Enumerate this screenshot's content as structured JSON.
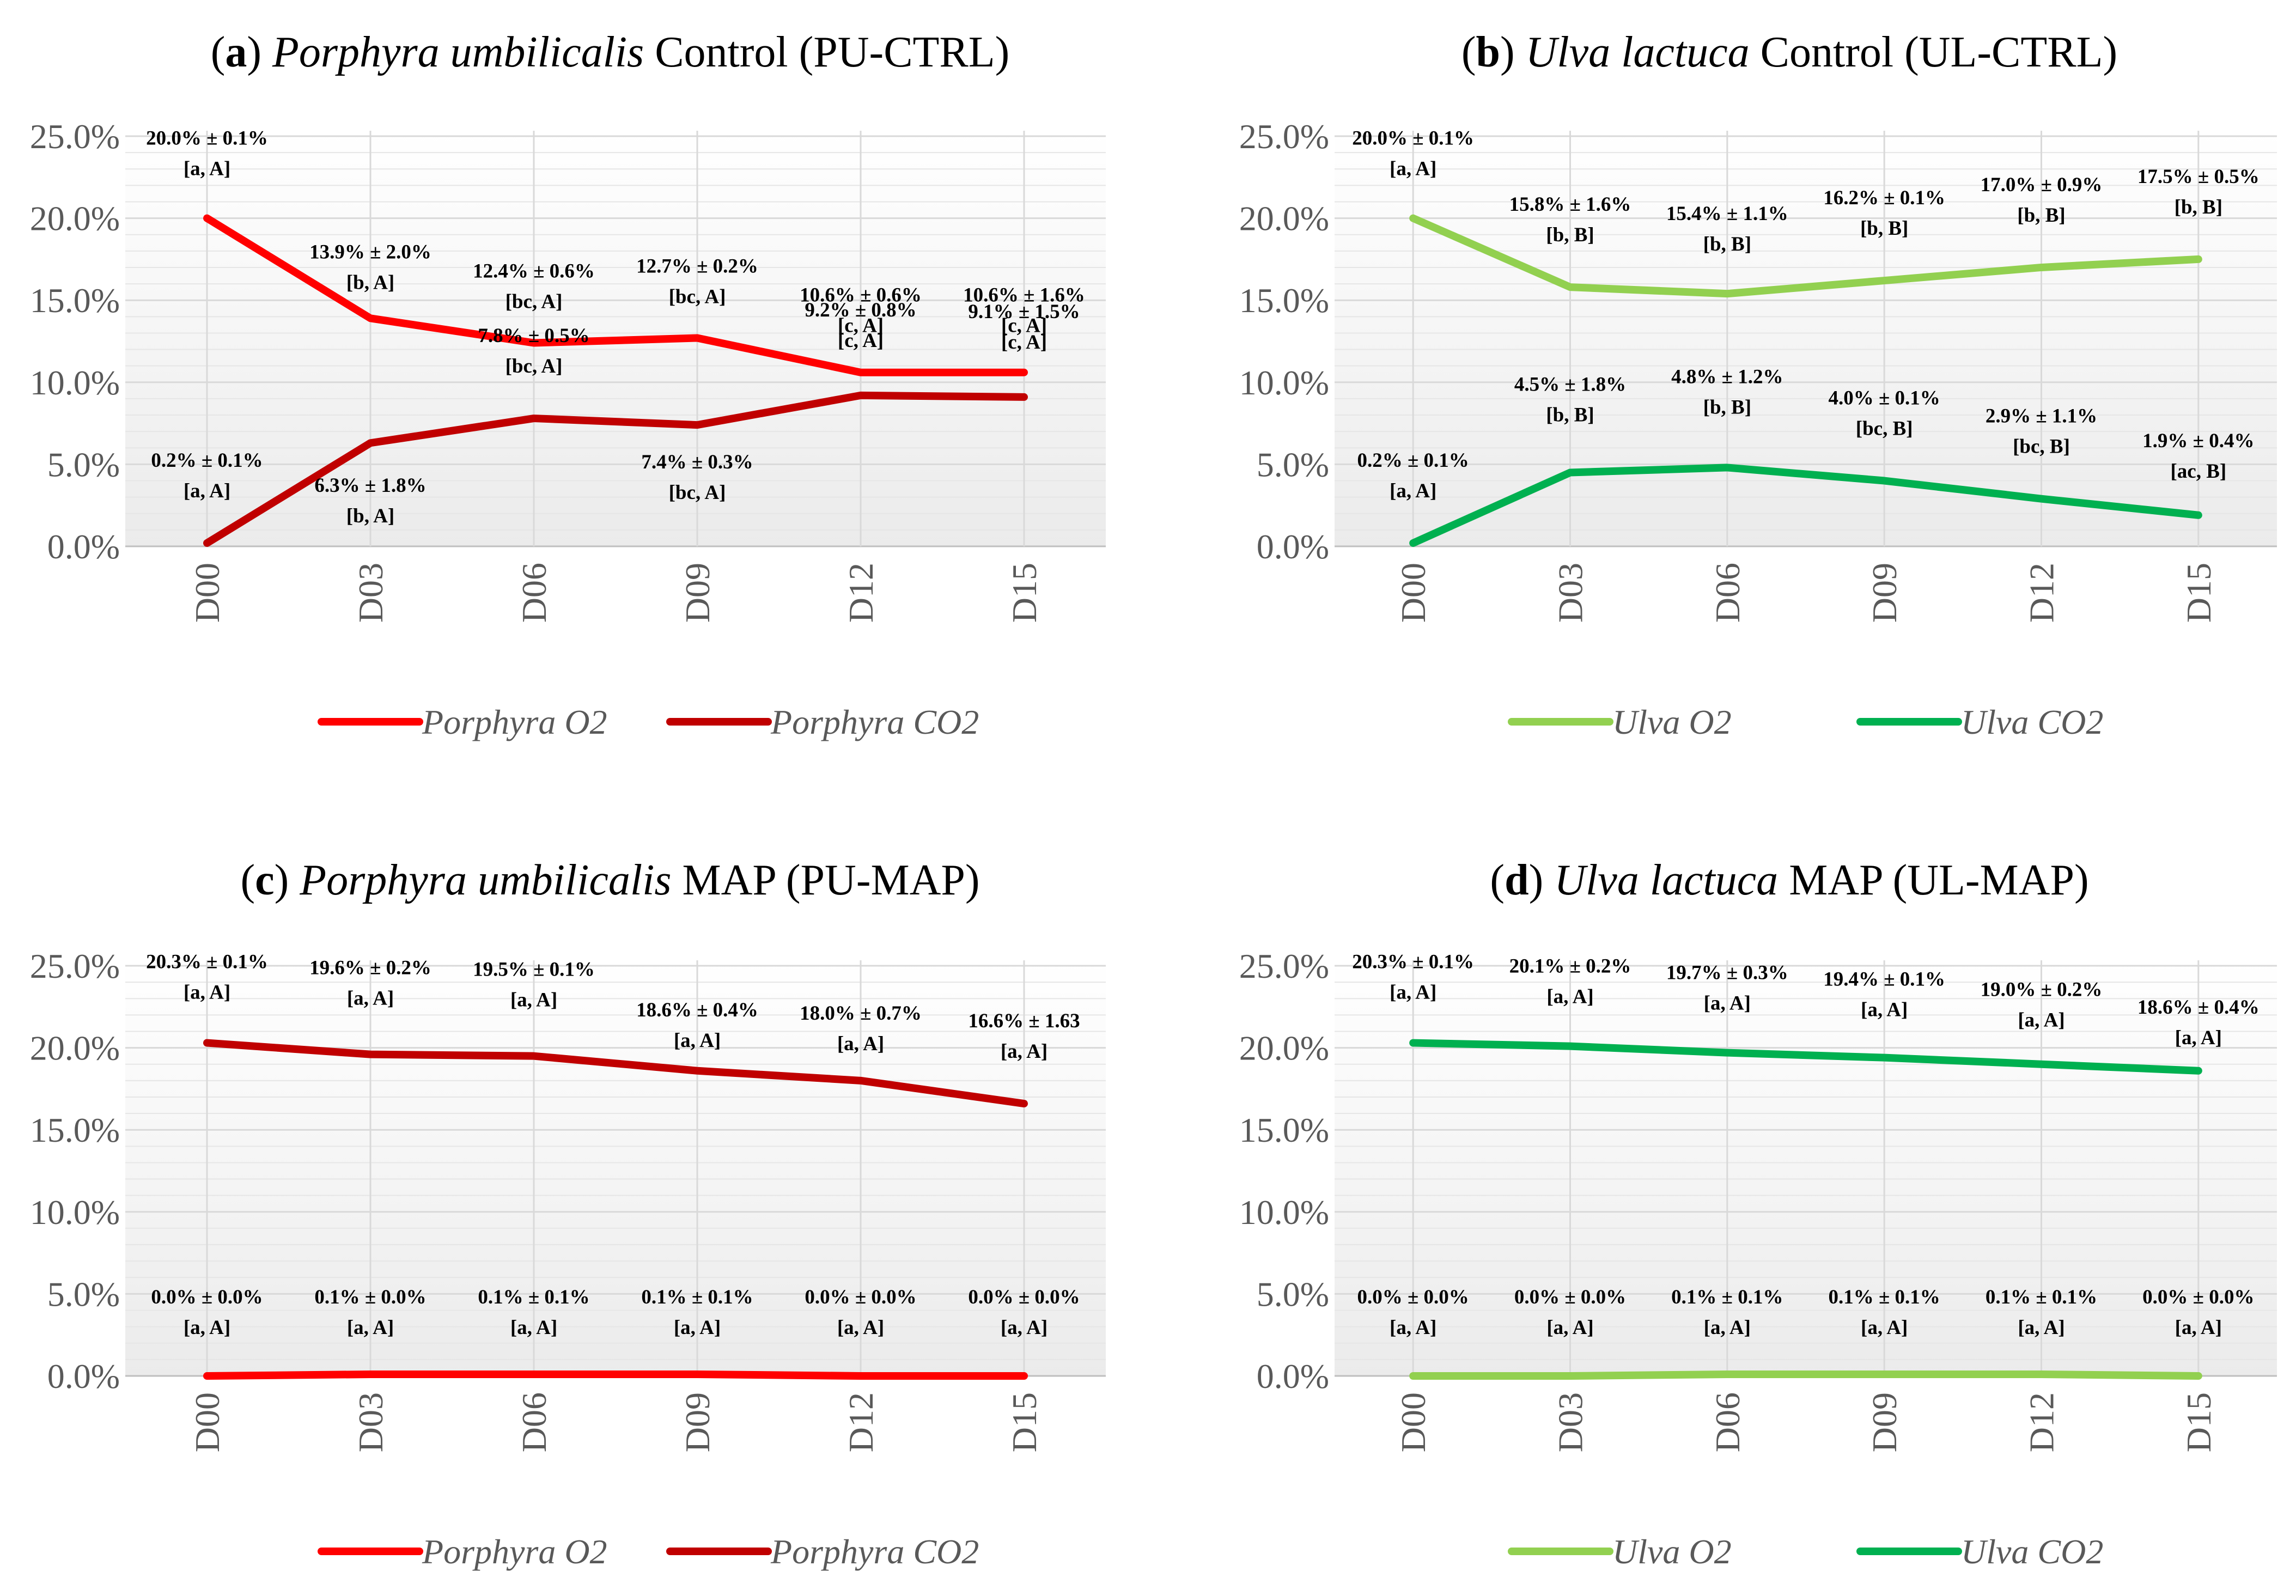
{
  "chart_data": [
    {
      "type": "line",
      "title": {
        "letter": "a",
        "species": "Porphyra umbilicalis",
        "rest": " Control (PU-CTRL)"
      },
      "categories": [
        "D00",
        "D03",
        "D06",
        "D09",
        "D12",
        "D15"
      ],
      "ylim": [
        0,
        25
      ],
      "yticks": [
        "0.0%",
        "5.0%",
        "10.0%",
        "15.0%",
        "20.0%",
        "25.0%"
      ],
      "series": [
        {
          "name": "Porphyra O2",
          "color": "#ff0000",
          "values": [
            20.0,
            13.9,
            12.4,
            12.7,
            10.6,
            10.6
          ],
          "labels": [
            [
              "20.0% ± 0.1%",
              "[a, A]"
            ],
            [
              "13.9% ± 2.0%",
              "[b, A]"
            ],
            [
              "12.4% ± 0.6%",
              "[bc, A]"
            ],
            [
              "12.7% ± 0.2%",
              "[bc, A]"
            ],
            [
              "10.6% ± 0.6%",
              "[c, A]"
            ],
            [
              "10.6% ± 1.6%",
              "[c, A]"
            ]
          ]
        },
        {
          "name": "Porphyra CO2",
          "color": "#c00000",
          "values": [
            0.2,
            6.3,
            7.8,
            7.4,
            9.2,
            9.1
          ],
          "labels": [
            [
              "0.2% ± 0.1%",
              "[a, A]"
            ],
            [
              "6.3% ± 1.8%",
              "[b, A]"
            ],
            [
              "7.8% ± 0.5%",
              "[bc, A]"
            ],
            [
              "7.4% ± 0.3%",
              "[bc, A]"
            ],
            [
              "9.2% ± 0.8%",
              "[c, A]"
            ],
            [
              "9.1% ± 1.5%",
              "[c, A]"
            ]
          ]
        }
      ]
    },
    {
      "type": "line",
      "title": {
        "letter": "b",
        "species": "Ulva lactuca",
        "rest": " Control (UL-CTRL)"
      },
      "categories": [
        "D00",
        "D03",
        "D06",
        "D09",
        "D12",
        "D15"
      ],
      "ylim": [
        0,
        25
      ],
      "yticks": [
        "0.0%",
        "5.0%",
        "10.0%",
        "15.0%",
        "20.0%",
        "25.0%"
      ],
      "series": [
        {
          "name": "Ulva O2",
          "color": "#92d050",
          "values": [
            20.0,
            15.8,
            15.4,
            16.2,
            17.0,
            17.5
          ],
          "labels": [
            [
              "20.0% ± 0.1%",
              "[a, A]"
            ],
            [
              "15.8% ± 1.6%",
              "[b, B]"
            ],
            [
              "15.4% ± 1.1%",
              "[b, B]"
            ],
            [
              "16.2% ± 0.1%",
              "[b, B]"
            ],
            [
              "17.0% ± 0.9%",
              "[b, B]"
            ],
            [
              "17.5% ± 0.5%",
              "[b, B]"
            ]
          ]
        },
        {
          "name": "Ulva CO2",
          "color": "#00b050",
          "values": [
            0.2,
            4.5,
            4.8,
            4.0,
            2.9,
            1.9
          ],
          "labels": [
            [
              "0.2% ± 0.1%",
              "[a, A]"
            ],
            [
              "4.5% ± 1.8%",
              "[b, B]"
            ],
            [
              "4.8% ± 1.2%",
              "[b, B]"
            ],
            [
              "4.0% ± 0.1%",
              "[bc, B]"
            ],
            [
              "2.9% ± 1.1%",
              "[bc, B]"
            ],
            [
              "1.9% ± 0.4%",
              "[ac, B]"
            ]
          ]
        }
      ]
    },
    {
      "type": "line",
      "title": {
        "letter": "c",
        "species": "Porphyra umbilicalis",
        "rest": " MAP (PU-MAP)"
      },
      "categories": [
        "D00",
        "D03",
        "D06",
        "D09",
        "D12",
        "D15"
      ],
      "ylim": [
        0,
        25
      ],
      "yticks": [
        "0.0%",
        "5.0%",
        "10.0%",
        "15.0%",
        "20.0%",
        "25.0%"
      ],
      "series": [
        {
          "name": "Porphyra O2",
          "color": "#ff0000",
          "values": [
            0.0,
            0.1,
            0.1,
            0.1,
            0.0,
            0.0
          ],
          "labels": [
            [
              "0.0% ± 0.0%",
              "[a, A]"
            ],
            [
              "0.1% ± 0.0%",
              "[a, A]"
            ],
            [
              "0.1% ± 0.1%",
              "[a, A]"
            ],
            [
              "0.1% ± 0.1%",
              "[a, A]"
            ],
            [
              "0.0% ± 0.0%",
              "[a, A]"
            ],
            [
              "0.0% ± 0.0%",
              "[a, A]"
            ]
          ]
        },
        {
          "name": "Porphyra CO2",
          "color": "#c00000",
          "values": [
            20.3,
            19.6,
            19.5,
            18.6,
            18.0,
            16.6
          ],
          "labels": [
            [
              "20.3% ± 0.1%",
              "[a, A]"
            ],
            [
              "19.6% ± 0.2%",
              "[a, A]"
            ],
            [
              "19.5% ± 0.1%",
              "[a, A]"
            ],
            [
              "18.6% ± 0.4%",
              "[a, A]"
            ],
            [
              "18.0% ± 0.7%",
              "[a, A]"
            ],
            [
              "16.6% ± 1.63",
              "[a, A]"
            ]
          ]
        }
      ]
    },
    {
      "type": "line",
      "title": {
        "letter": "d",
        "species": "Ulva lactuca",
        "rest": " MAP (UL-MAP)"
      },
      "categories": [
        "D00",
        "D03",
        "D06",
        "D09",
        "D12",
        "D15"
      ],
      "ylim": [
        0,
        25
      ],
      "yticks": [
        "0.0%",
        "5.0%",
        "10.0%",
        "15.0%",
        "20.0%",
        "25.0%"
      ],
      "series": [
        {
          "name": "Ulva O2",
          "color": "#92d050",
          "values": [
            0.0,
            0.0,
            0.1,
            0.1,
            0.1,
            0.0
          ],
          "labels": [
            [
              "0.0% ± 0.0%",
              "[a, A]"
            ],
            [
              "0.0% ± 0.0%",
              "[a, A]"
            ],
            [
              "0.1% ± 0.1%",
              "[a, A]"
            ],
            [
              "0.1% ± 0.1%",
              "[a, A]"
            ],
            [
              "0.1% ± 0.1%",
              "[a, A]"
            ],
            [
              "0.0% ± 0.0%",
              "[a, A]"
            ]
          ]
        },
        {
          "name": "Ulva CO2",
          "color": "#00b050",
          "values": [
            20.3,
            20.1,
            19.7,
            19.4,
            19.0,
            18.6
          ],
          "labels": [
            [
              "20.3% ± 0.1%",
              "[a, A]"
            ],
            [
              "20.1% ± 0.2%",
              "[a, A]"
            ],
            [
              "19.7% ± 0.3%",
              "[a, A]"
            ],
            [
              "19.4% ± 0.1%",
              "[a, A]"
            ],
            [
              "19.0% ± 0.2%",
              "[a, A]"
            ],
            [
              "18.6% ± 0.4%",
              "[a, A]"
            ]
          ]
        }
      ]
    }
  ]
}
